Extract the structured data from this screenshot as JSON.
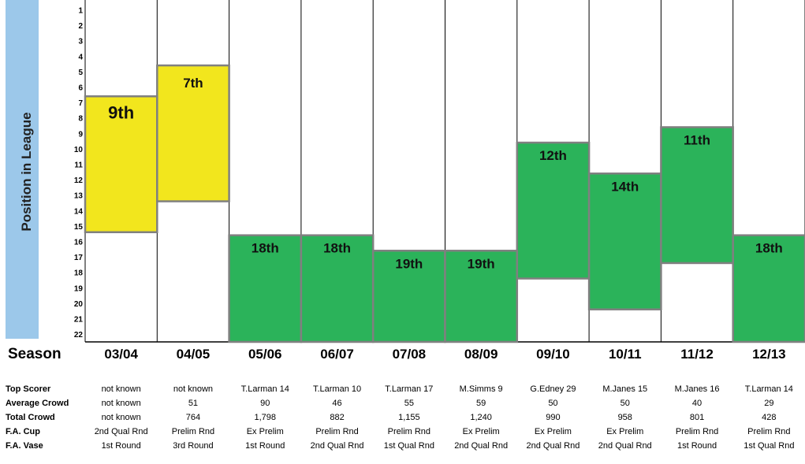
{
  "chart_data": {
    "type": "bar",
    "ylabel": "Position in League",
    "y_ticks": [
      "1",
      "2",
      "3",
      "4",
      "5",
      "6",
      "7",
      "8",
      "9",
      "10",
      "11",
      "12",
      "13",
      "14",
      "15",
      "16",
      "17",
      "18",
      "19",
      "20",
      "21",
      "22"
    ],
    "ylim": [
      1,
      22
    ],
    "y_inverted": true,
    "xlabel": "Season",
    "categories": [
      "03/04",
      "04/05",
      "05/06",
      "06/07",
      "07/08",
      "08/09",
      "09/10",
      "10/11",
      "11/12",
      "12/13"
    ],
    "values": [
      9,
      7,
      18,
      18,
      19,
      19,
      12,
      14,
      11,
      18
    ],
    "labels": [
      "9th",
      "7th",
      "18th",
      "18th",
      "19th",
      "19th",
      "12th",
      "14th",
      "11th",
      "18th"
    ],
    "bar_colors": [
      "#f2e61d",
      "#f2e61d",
      "#2bb35a",
      "#2bb35a",
      "#2bb35a",
      "#2bb35a",
      "#2bb35a",
      "#2bb35a",
      "#2bb35a",
      "#2bb35a"
    ]
  },
  "table": {
    "rows": [
      {
        "label": "Top Scorer",
        "values": [
          "not known",
          "not known",
          "T.Larman 14",
          "T.Larman 10",
          "T.Larman 17",
          "M.Simms 9",
          "G.Edney 29",
          "M.Janes 15",
          "M.Janes 16",
          "T.Larman 14"
        ]
      },
      {
        "label": "Average Crowd",
        "values": [
          "not known",
          "51",
          "90",
          "46",
          "55",
          "59",
          "50",
          "50",
          "40",
          "29"
        ]
      },
      {
        "label": "Total Crowd",
        "values": [
          "not known",
          "764",
          "1,798",
          "882",
          "1,155",
          "1,240",
          "990",
          "958",
          "801",
          "428"
        ]
      },
      {
        "label": "F.A. Cup",
        "values": [
          "2nd Qual Rnd",
          "Prelim Rnd",
          "Ex Prelim",
          "Prelim Rnd",
          "Prelim Rnd",
          "Ex Prelim",
          "Ex Prelim",
          "Ex Prelim",
          "Prelim Rnd",
          "Prelim Rnd"
        ]
      },
      {
        "label": "F.A. Vase",
        "values": [
          "1st Round",
          "3rd Round",
          "1st Round",
          "2nd Qual Rnd",
          "1st Qual Rnd",
          "2nd Qual Rnd",
          "2nd Qual Rnd",
          "2nd Qual Rnd",
          "1st Round",
          "1st Qual Rnd"
        ]
      }
    ]
  },
  "colors": {
    "ylabel_bg": "#9cc8ea",
    "border": "#808080"
  }
}
